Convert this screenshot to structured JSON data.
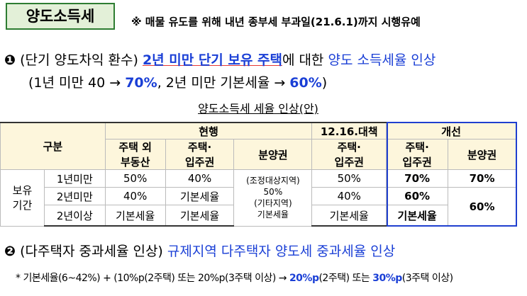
{
  "header": {
    "badge": "양도소득세",
    "note": "※ 매물 유도를 위해 내년 종부세 부과일(21.6.1)까지 시행유예"
  },
  "item1": {
    "bullet": "❶",
    "line1": [
      "(단기 양도차익 환수)",
      "2년 미만 단기 보유 주택",
      "에 대한",
      "양도 소득세율 인상"
    ],
    "line2": [
      "(1년 미만 40 → ",
      "70%",
      ", 2년 미만 기본세율 → ",
      "60%",
      ")"
    ]
  },
  "table": {
    "title": "양도소득세 세율 인상(안)",
    "head": [
      "구분",
      "현행",
      "12.16.대책",
      "개선"
    ],
    "subhead": [
      [
        "주택 외",
        "부동산"
      ],
      [
        "주택·",
        "입주권"
      ],
      [
        "분양권"
      ],
      [
        "주택·",
        "입주권"
      ],
      [
        "주택·",
        "입주권"
      ],
      [
        "분양권"
      ]
    ],
    "group": [
      "보유",
      "기간"
    ],
    "rows": [
      [
        "1년미만",
        "50%",
        "40%",
        "50%",
        "70%",
        "70%"
      ],
      [
        "2년미만",
        "40%",
        "기본세율",
        "40%",
        "60%"
      ],
      [
        "2년이상",
        "기본세율",
        "기본세율",
        "기본세율",
        "기본세율"
      ]
    ],
    "presale_current": [
      "(조정대상지역)",
      "50%",
      "(기타지역)",
      "기본세율"
    ],
    "presale_improved_2y": "60%"
  },
  "item2": {
    "bullet": "❷",
    "line": [
      "(다주택자 중과세율 인상)",
      "규제지역 다주택자 양도세 중과세율 인상"
    ],
    "note": [
      "* 기본세율(6~42%) + (10%p(2주택) 또는 20%p(3주택 이상) → ",
      "20%p",
      "(2주택) 또는 ",
      "30%p",
      "(3주택 이상)"
    ]
  }
}
